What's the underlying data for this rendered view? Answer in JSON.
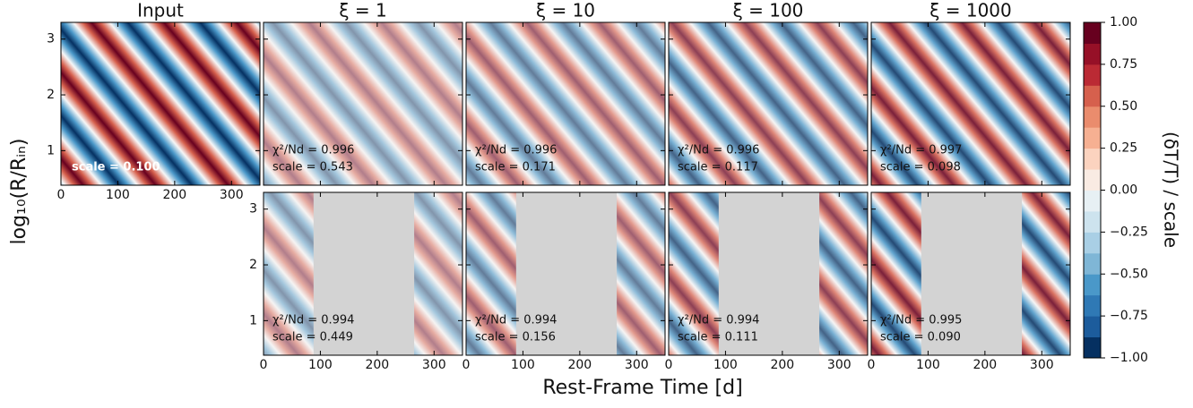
{
  "chart_data": {
    "type": "heatmap-grid",
    "xlabel": "Rest-Frame Time [d]",
    "ylabel": "log₁₀(R/Rᵢₙ)",
    "xlim": [
      0,
      350
    ],
    "xticks": [
      0,
      100,
      200,
      300
    ],
    "ylim": [
      0.38,
      3.3
    ],
    "yticks": [
      1,
      2,
      3
    ],
    "masked_range": [
      88,
      265
    ],
    "top": [
      {
        "title": "Input",
        "lines": [
          "scale = 0.100"
        ]
      },
      {
        "title": "ξ = 1",
        "lines": [
          "χ²/Nd = 0.996",
          "scale = 0.543"
        ]
      },
      {
        "title": "ξ = 10",
        "lines": [
          "χ²/Nd = 0.996",
          "scale = 0.171"
        ]
      },
      {
        "title": "ξ = 100",
        "lines": [
          "χ²/Nd = 0.996",
          "scale = 0.117"
        ]
      },
      {
        "title": "ξ = 1000",
        "lines": [
          "χ²/Nd = 0.997",
          "scale = 0.098"
        ]
      }
    ],
    "bottom": [
      {
        "lines": [
          "χ²/Nd = 0.994",
          "scale = 0.449"
        ]
      },
      {
        "lines": [
          "χ²/Nd = 0.994",
          "scale = 0.156"
        ]
      },
      {
        "lines": [
          "χ²/Nd = 0.994",
          "scale = 0.111"
        ]
      },
      {
        "lines": [
          "χ²/Nd = 0.995",
          "scale = 0.090"
        ]
      }
    ],
    "colorbar": {
      "label": "(δT/T) / scale",
      "lim": [
        -1,
        1
      ],
      "ticks": [
        {
          "value": -1,
          "label": "−1.00"
        },
        {
          "value": -0.75,
          "label": "−0.75"
        },
        {
          "value": -0.5,
          "label": "−0.50"
        },
        {
          "value": -0.25,
          "label": "−0.25"
        },
        {
          "value": 0,
          "label": "0.00"
        },
        {
          "value": 0.25,
          "label": "0.25"
        },
        {
          "value": 0.5,
          "label": "0.50"
        },
        {
          "value": 0.75,
          "label": "0.75"
        },
        {
          "value": 1,
          "label": "1.00"
        }
      ],
      "colors": [
        "#053061",
        "#1c5c9c",
        "#2f79b5",
        "#4a98c9",
        "#7fb6d6",
        "#a9cfe5",
        "#cde3ee",
        "#e7f0f4",
        "#f9ebe3",
        "#fbd3bf",
        "#f6b092",
        "#ea8c6d",
        "#d6604d",
        "#bb2a34",
        "#961027",
        "#67001f"
      ]
    }
  }
}
